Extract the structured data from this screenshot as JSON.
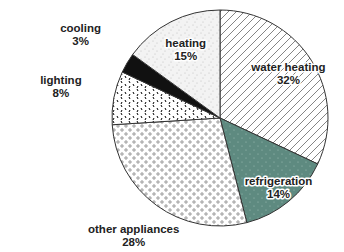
{
  "chart_data": {
    "type": "pie",
    "categories": [
      "water heating",
      "refrigeration",
      "other appliances",
      "lighting",
      "cooling",
      "heating"
    ],
    "values": [
      32,
      14,
      28,
      8,
      3,
      15
    ],
    "value_labels": [
      "32%",
      "14%",
      "28%",
      "8%",
      "3%",
      "15%"
    ],
    "colors": [
      "#ffffff",
      "#5e8a80",
      "#ffffff",
      "#ffffff",
      "#111111",
      "#f3f3f3"
    ],
    "data_labels": true
  }
}
